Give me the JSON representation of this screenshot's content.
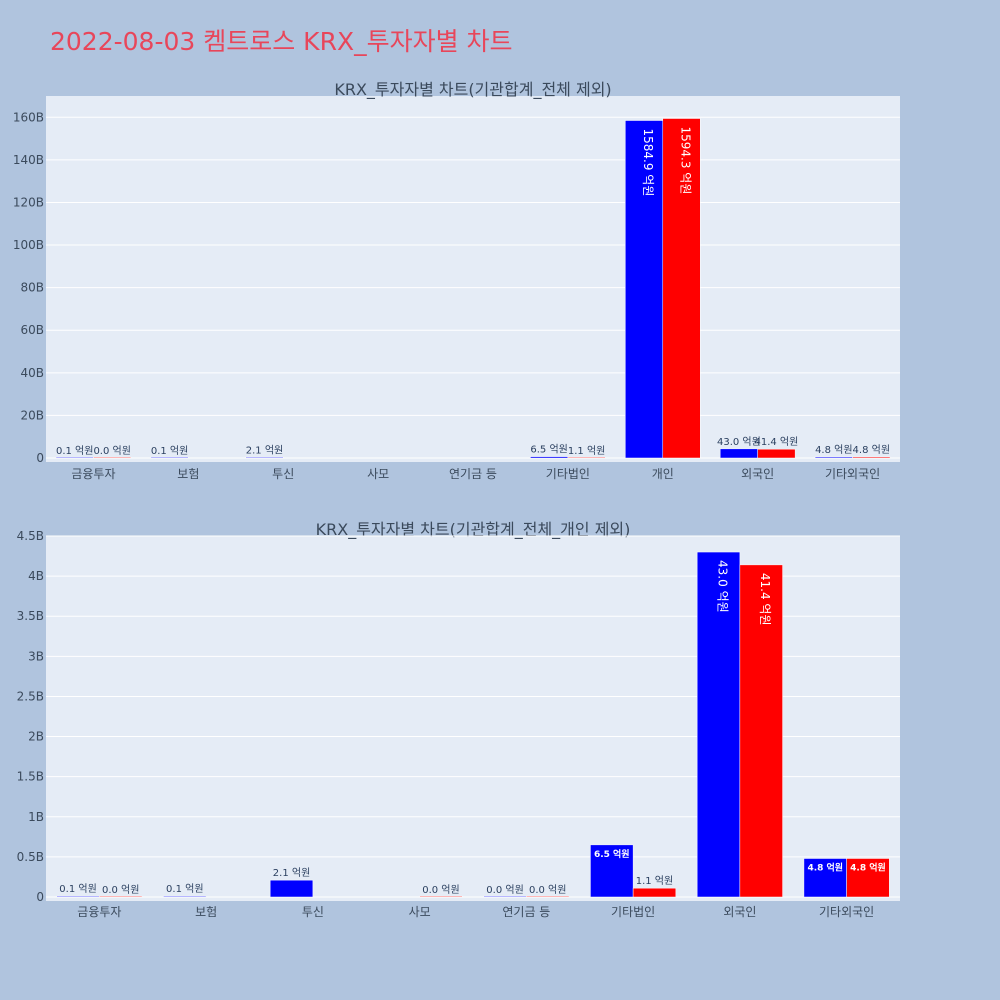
{
  "page": {
    "title": "2022-08-03 켐트로스 KRX_투자자별 차트"
  },
  "colors": {
    "series1": "#0000ff",
    "series2": "#ff0000",
    "plot_bg": "#e5ecf6",
    "page_bg": "#b0c4de",
    "title": "#e8465a"
  },
  "chart_data": [
    {
      "type": "bar",
      "title": "KRX_투자자별 차트(기관합계_전체 제외)",
      "categories": [
        "금융투자",
        "보험",
        "투신",
        "사모",
        "연기금 등",
        "기타법인",
        "개인",
        "외국인",
        "기타외국인"
      ],
      "ylim": [
        0,
        170000000000
      ],
      "yticks": [
        0,
        20000000000,
        40000000000,
        60000000000,
        80000000000,
        100000000000,
        120000000000,
        140000000000,
        160000000000
      ],
      "ytick_labels": [
        "0",
        "20B",
        "40B",
        "60B",
        "80B",
        "100B",
        "120B",
        "140B",
        "160B"
      ],
      "grid": true,
      "series": [
        {
          "values": [
            10000000,
            10000000,
            210000000,
            null,
            null,
            650000000,
            158490000000,
            4300000000,
            480000000
          ],
          "labels": [
            "0.1 억원",
            "0.1 억원",
            "2.1 억원",
            "",
            "",
            "6.5 억원",
            "1584.9 억원",
            "43.0 억원",
            "4.8 억원"
          ]
        },
        {
          "values": [
            0,
            null,
            null,
            null,
            null,
            110000000,
            159430000000,
            4140000000,
            480000000
          ],
          "labels": [
            "0.0 억원",
            "",
            "",
            "",
            "",
            "1.1 억원",
            "1594.3 억원",
            "41.4 억원",
            "4.8 억원"
          ]
        }
      ]
    },
    {
      "type": "bar",
      "title": "KRX_투자자별 차트(기관합계_전체_개인 제외)",
      "categories": [
        "금융투자",
        "보험",
        "투신",
        "사모",
        "연기금 등",
        "기타법인",
        "외국인",
        "기타외국인"
      ],
      "ylim": [
        0,
        4500000000
      ],
      "yticks": [
        0,
        500000000,
        1000000000,
        1500000000,
        2000000000,
        2500000000,
        3000000000,
        3500000000,
        4000000000,
        4500000000
      ],
      "ytick_labels": [
        "0",
        "0.5B",
        "1B",
        "1.5B",
        "2B",
        "2.5B",
        "3B",
        "3.5B",
        "4B",
        "4.5B"
      ],
      "grid": true,
      "series": [
        {
          "values": [
            10000000,
            10000000,
            210000000,
            null,
            0,
            650000000,
            4300000000,
            480000000
          ],
          "labels": [
            "0.1 억원",
            "0.1 억원",
            "2.1 억원",
            "",
            "0.0 억원",
            "6.5 억원",
            "43.0 억원",
            "4.8 억원"
          ]
        },
        {
          "values": [
            0,
            null,
            null,
            0,
            0,
            110000000,
            4140000000,
            480000000
          ],
          "labels": [
            "0.0 억원",
            "",
            "",
            "0.0 억원",
            "0.0 억원",
            "1.1 억원",
            "41.4 억원",
            "4.8 억원"
          ]
        }
      ]
    }
  ]
}
